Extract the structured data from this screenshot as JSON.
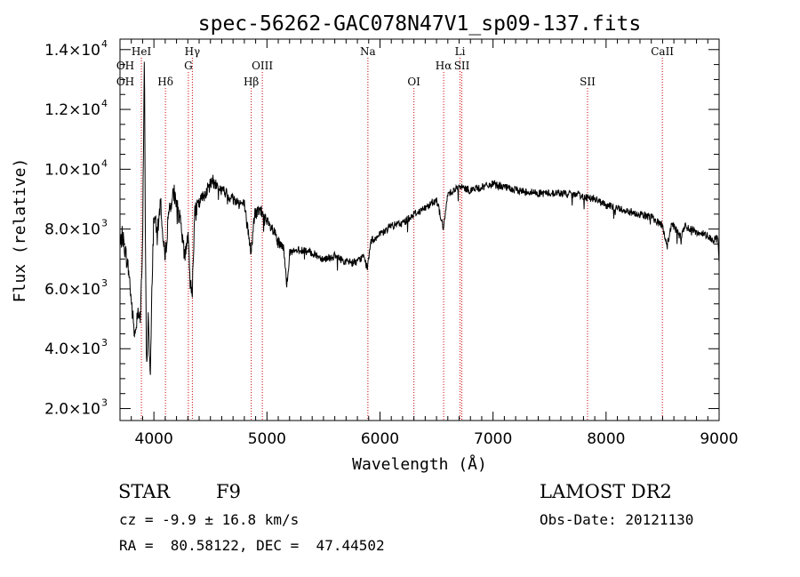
{
  "chart_data": {
    "type": "line",
    "title": "spec-56262-GAC078N47V1_sp09-137.fits",
    "xlabel": "Wavelength (Å)",
    "ylabel": "Flux (relative)",
    "xlim": [
      3700,
      9000
    ],
    "ylim": [
      1600,
      14350
    ],
    "x_ticks": [
      4000,
      5000,
      6000,
      7000,
      8000,
      9000
    ],
    "x_tick_labels": [
      "4000",
      "5000",
      "6000",
      "7000",
      "8000",
      "9000"
    ],
    "y_ticks": [
      {
        "value": 2000,
        "mantissa": "2.0×10",
        "exp": "3"
      },
      {
        "value": 4000,
        "mantissa": "4.0×10",
        "exp": "3"
      },
      {
        "value": 6000,
        "mantissa": "6.0×10",
        "exp": "3"
      },
      {
        "value": 8000,
        "mantissa": "8.0×10",
        "exp": "3"
      },
      {
        "value": 10000,
        "mantissa": "1.0×10",
        "exp": "4"
      },
      {
        "value": 12000,
        "mantissa": "1.2×10",
        "exp": "4"
      },
      {
        "value": 14000,
        "mantissa": "1.4×10",
        "exp": "4"
      }
    ],
    "spectrum_anchors": [
      [
        3700,
        7400
      ],
      [
        3720,
        7800
      ],
      [
        3750,
        7200
      ],
      [
        3780,
        6500
      ],
      [
        3800,
        5600
      ],
      [
        3830,
        4400
      ],
      [
        3860,
        5400
      ],
      [
        3880,
        5000
      ],
      [
        3900,
        7300
      ],
      [
        3915,
        14100
      ],
      [
        3925,
        7500
      ],
      [
        3935,
        3100
      ],
      [
        3950,
        5200
      ],
      [
        3968,
        2900
      ],
      [
        3985,
        6500
      ],
      [
        4000,
        8500
      ],
      [
        4030,
        7800
      ],
      [
        4060,
        9000
      ],
      [
        4080,
        7600
      ],
      [
        4100,
        7000
      ],
      [
        4130,
        8600
      ],
      [
        4180,
        9200
      ],
      [
        4230,
        8300
      ],
      [
        4270,
        7100
      ],
      [
        4300,
        7800
      ],
      [
        4320,
        6300
      ],
      [
        4340,
        6000
      ],
      [
        4360,
        8500
      ],
      [
        4420,
        9000
      ],
      [
        4470,
        9300
      ],
      [
        4520,
        9600
      ],
      [
        4600,
        9300
      ],
      [
        4700,
        9000
      ],
      [
        4800,
        8800
      ],
      [
        4860,
        7200
      ],
      [
        4890,
        8500
      ],
      [
        4950,
        8600
      ],
      [
        5000,
        8200
      ],
      [
        5060,
        7900
      ],
      [
        5100,
        7500
      ],
      [
        5150,
        7300
      ],
      [
        5175,
        6200
      ],
      [
        5200,
        7200
      ],
      [
        5300,
        7300
      ],
      [
        5400,
        7200
      ],
      [
        5500,
        7000
      ],
      [
        5600,
        7100
      ],
      [
        5700,
        6900
      ],
      [
        5800,
        6900
      ],
      [
        5850,
        7100
      ],
      [
        5890,
        6700
      ],
      [
        5920,
        7600
      ],
      [
        6000,
        7800
      ],
      [
        6100,
        8100
      ],
      [
        6200,
        8200
      ],
      [
        6300,
        8500
      ],
      [
        6400,
        8700
      ],
      [
        6500,
        9000
      ],
      [
        6563,
        8000
      ],
      [
        6600,
        9200
      ],
      [
        6700,
        9400
      ],
      [
        6800,
        9300
      ],
      [
        6900,
        9400
      ],
      [
        7000,
        9500
      ],
      [
        7100,
        9400
      ],
      [
        7200,
        9300
      ],
      [
        7400,
        9200
      ],
      [
        7600,
        9200
      ],
      [
        7800,
        9100
      ],
      [
        7900,
        9000
      ],
      [
        8000,
        8800
      ],
      [
        8200,
        8600
      ],
      [
        8400,
        8400
      ],
      [
        8500,
        8100
      ],
      [
        8540,
        7400
      ],
      [
        8580,
        8200
      ],
      [
        8662,
        7700
      ],
      [
        8700,
        8100
      ],
      [
        8800,
        7900
      ],
      [
        8900,
        7800
      ],
      [
        8950,
        7600
      ],
      [
        8990,
        7700
      ],
      [
        9000,
        6800
      ]
    ],
    "line_markers": [
      {
        "label": "HeI",
        "wavelength": 3889,
        "row": 0
      },
      {
        "label": "OH",
        "wavelength": 3700,
        "row": 1
      },
      {
        "label": "OH",
        "wavelength": 3700,
        "row": 2
      },
      {
        "label": "Hδ",
        "wavelength": 4102,
        "row": 2
      },
      {
        "label": "Hγ",
        "wavelength": 4340,
        "row": 0
      },
      {
        "label": "G",
        "wavelength": 4305,
        "row": 1
      },
      {
        "label": "OIII",
        "wavelength": 4959,
        "row": 1
      },
      {
        "label": "Hβ",
        "wavelength": 4861,
        "row": 2
      },
      {
        "label": "Na",
        "wavelength": 5893,
        "row": 0
      },
      {
        "label": "OI",
        "wavelength": 6300,
        "row": 2
      },
      {
        "label": "Hα",
        "wavelength": 6563,
        "row": 1
      },
      {
        "label": "Li",
        "wavelength": 6708,
        "row": 0
      },
      {
        "label": "SII",
        "wavelength": 6724,
        "row": 1
      },
      {
        "label": "SII",
        "wavelength": 7836,
        "row": 2
      },
      {
        "label": "CaII",
        "wavelength": 8498,
        "row": 0
      }
    ],
    "marker_color": "#cc0000",
    "line_color": "#000000",
    "grid": false
  },
  "info": {
    "object_class": "STAR",
    "subclass": "F9",
    "survey": "LAMOST DR2",
    "cz": "cz = -9.9 ± 16.8 km/s",
    "obs_date": "Obs-Date: 20121130",
    "coords": "RA =  80.58122, DEC =  47.44502"
  }
}
